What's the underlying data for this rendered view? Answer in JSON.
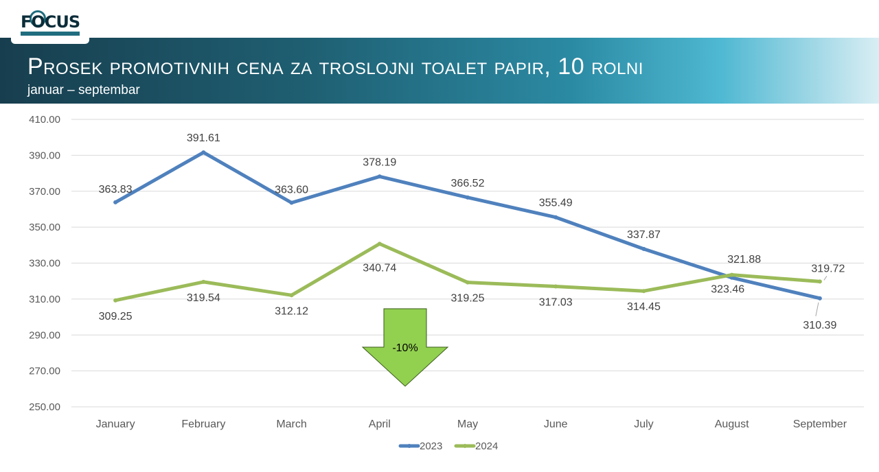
{
  "title": "Prosek promotivnih cena za troslojni toalet papir, 10 rolni",
  "subtitle": "januar – septembar",
  "logo_text": "FOCUS",
  "arrow_label": "-10%",
  "colors": {
    "series_2023": "#4f81bd",
    "series_2024": "#9bbb59",
    "arrow": "#92d050"
  },
  "chart_data": {
    "type": "line",
    "categories": [
      "January",
      "February",
      "March",
      "April",
      "May",
      "June",
      "July",
      "August",
      "September"
    ],
    "ylim": [
      250,
      410
    ],
    "yticks": [
      "410.00",
      "390.00",
      "370.00",
      "350.00",
      "330.00",
      "310.00",
      "290.00",
      "270.00",
      "250.00"
    ],
    "grid": true,
    "legend": "bottom",
    "series": [
      {
        "name": "2023",
        "values": [
          363.83,
          391.61,
          363.6,
          378.19,
          366.52,
          355.49,
          337.87,
          321.88,
          310.39
        ],
        "labels": [
          "363.83",
          "391.61",
          "363.60",
          "378.19",
          "366.52",
          "355.49",
          "337.87",
          "321.88",
          "310.39"
        ]
      },
      {
        "name": "2024",
        "values": [
          309.25,
          319.54,
          312.12,
          340.74,
          319.25,
          317.03,
          314.45,
          323.46,
          319.72
        ],
        "labels": [
          "309.25",
          "319.54",
          "312.12",
          "340.74",
          "319.25",
          "317.03",
          "314.45",
          "323.46",
          "319.72"
        ]
      }
    ]
  }
}
